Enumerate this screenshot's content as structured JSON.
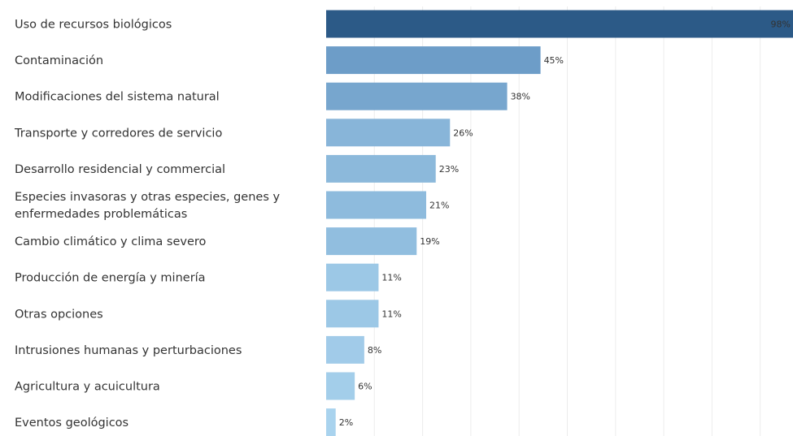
{
  "chart_data": {
    "type": "bar",
    "orientation": "horizontal",
    "categories": [
      [
        "Uso de recursos biológicos"
      ],
      [
        "Contaminación"
      ],
      [
        "Modificaciones del sistema natural"
      ],
      [
        "Transporte y corredores de servicio"
      ],
      [
        "Desarrollo residencial y commercial"
      ],
      [
        "Especies invasoras y otras especies, genes y",
        "enfermedades problemáticas"
      ],
      [
        "Cambio climático y clima severo"
      ],
      [
        "Producción de energía y minería"
      ],
      [
        "Otras opciones"
      ],
      [
        "Intrusiones humanas y perturbaciones"
      ],
      [
        "Agricultura y acuicultura"
      ],
      [
        "Eventos geológicos"
      ]
    ],
    "values": [
      98,
      45,
      38,
      26,
      23,
      21,
      19,
      11,
      11,
      8,
      6,
      2
    ],
    "value_labels": [
      "98%",
      "45%",
      "38%",
      "26%",
      "23%",
      "21%",
      "19%",
      "11%",
      "11%",
      "8%",
      "6%",
      "2%"
    ],
    "xlim": [
      0,
      98
    ],
    "grid": true,
    "colors": {
      "bar_max": "#2c5a87",
      "bar_scale_high": "#6d9dc8",
      "bar_scale_low": "#a9d3ee",
      "grid": "#ececec",
      "text": "#333333",
      "label_on_dark": "#ffffff"
    }
  }
}
